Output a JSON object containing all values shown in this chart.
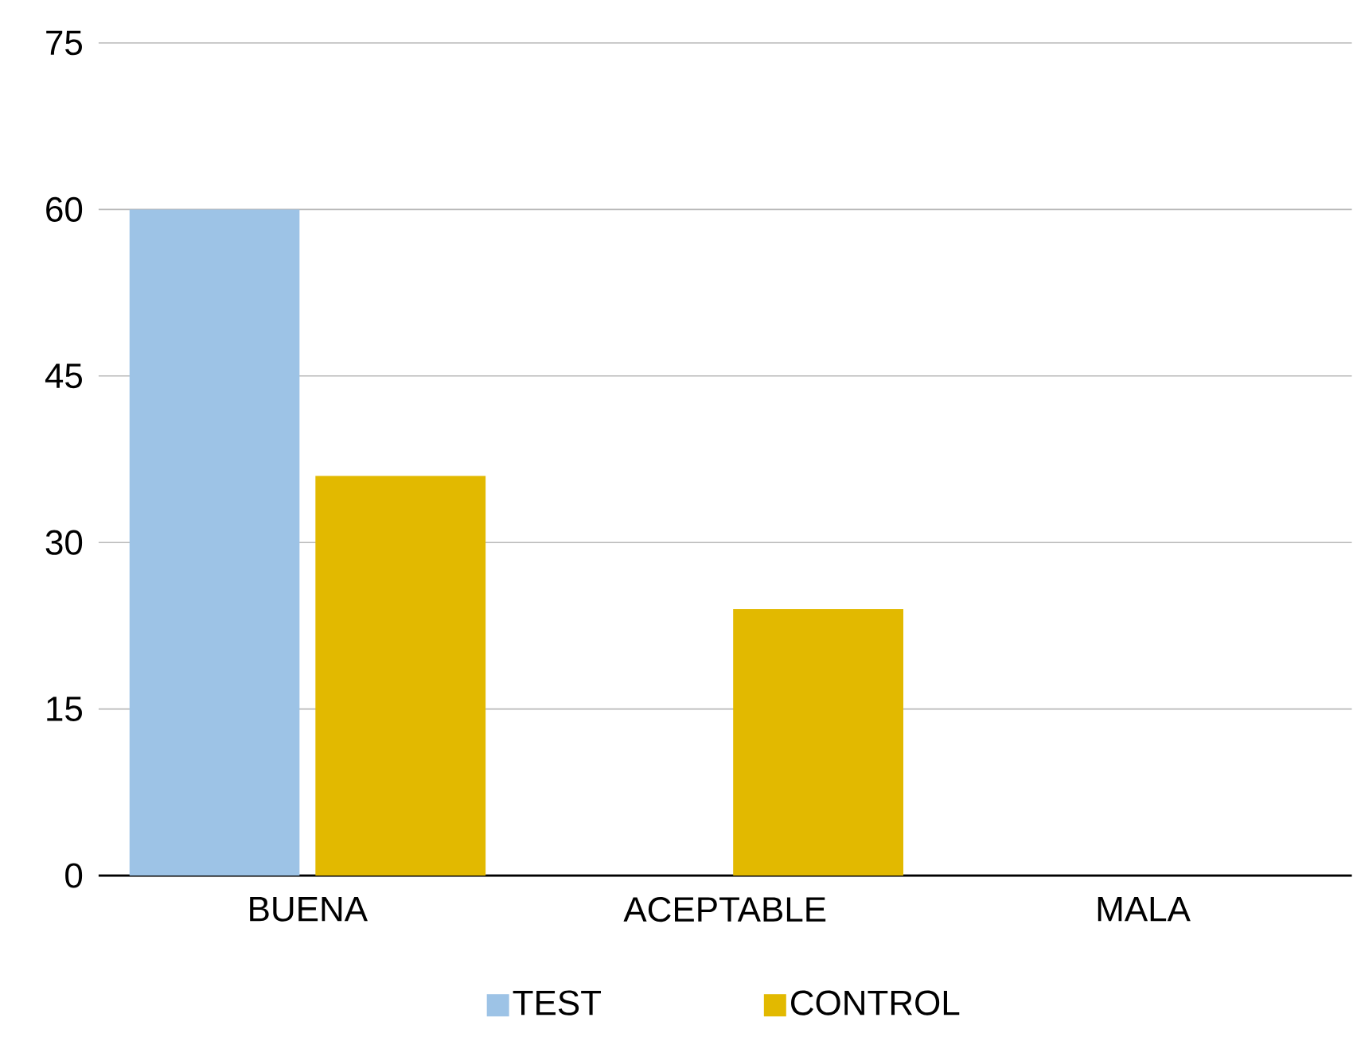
{
  "chart_data": {
    "type": "bar",
    "categories": [
      "BUENA",
      "ACEPTABLE",
      "MALA"
    ],
    "series": [
      {
        "name": "TEST",
        "color": "#9dc3e6",
        "values": [
          60,
          0,
          0
        ]
      },
      {
        "name": "CONTROL",
        "color": "#e2b900",
        "values": [
          36,
          24,
          0
        ]
      }
    ],
    "ylim": [
      0,
      75
    ],
    "yticks": [
      0,
      15,
      30,
      45,
      60,
      75
    ],
    "grid": "y",
    "legend": "bottom"
  }
}
